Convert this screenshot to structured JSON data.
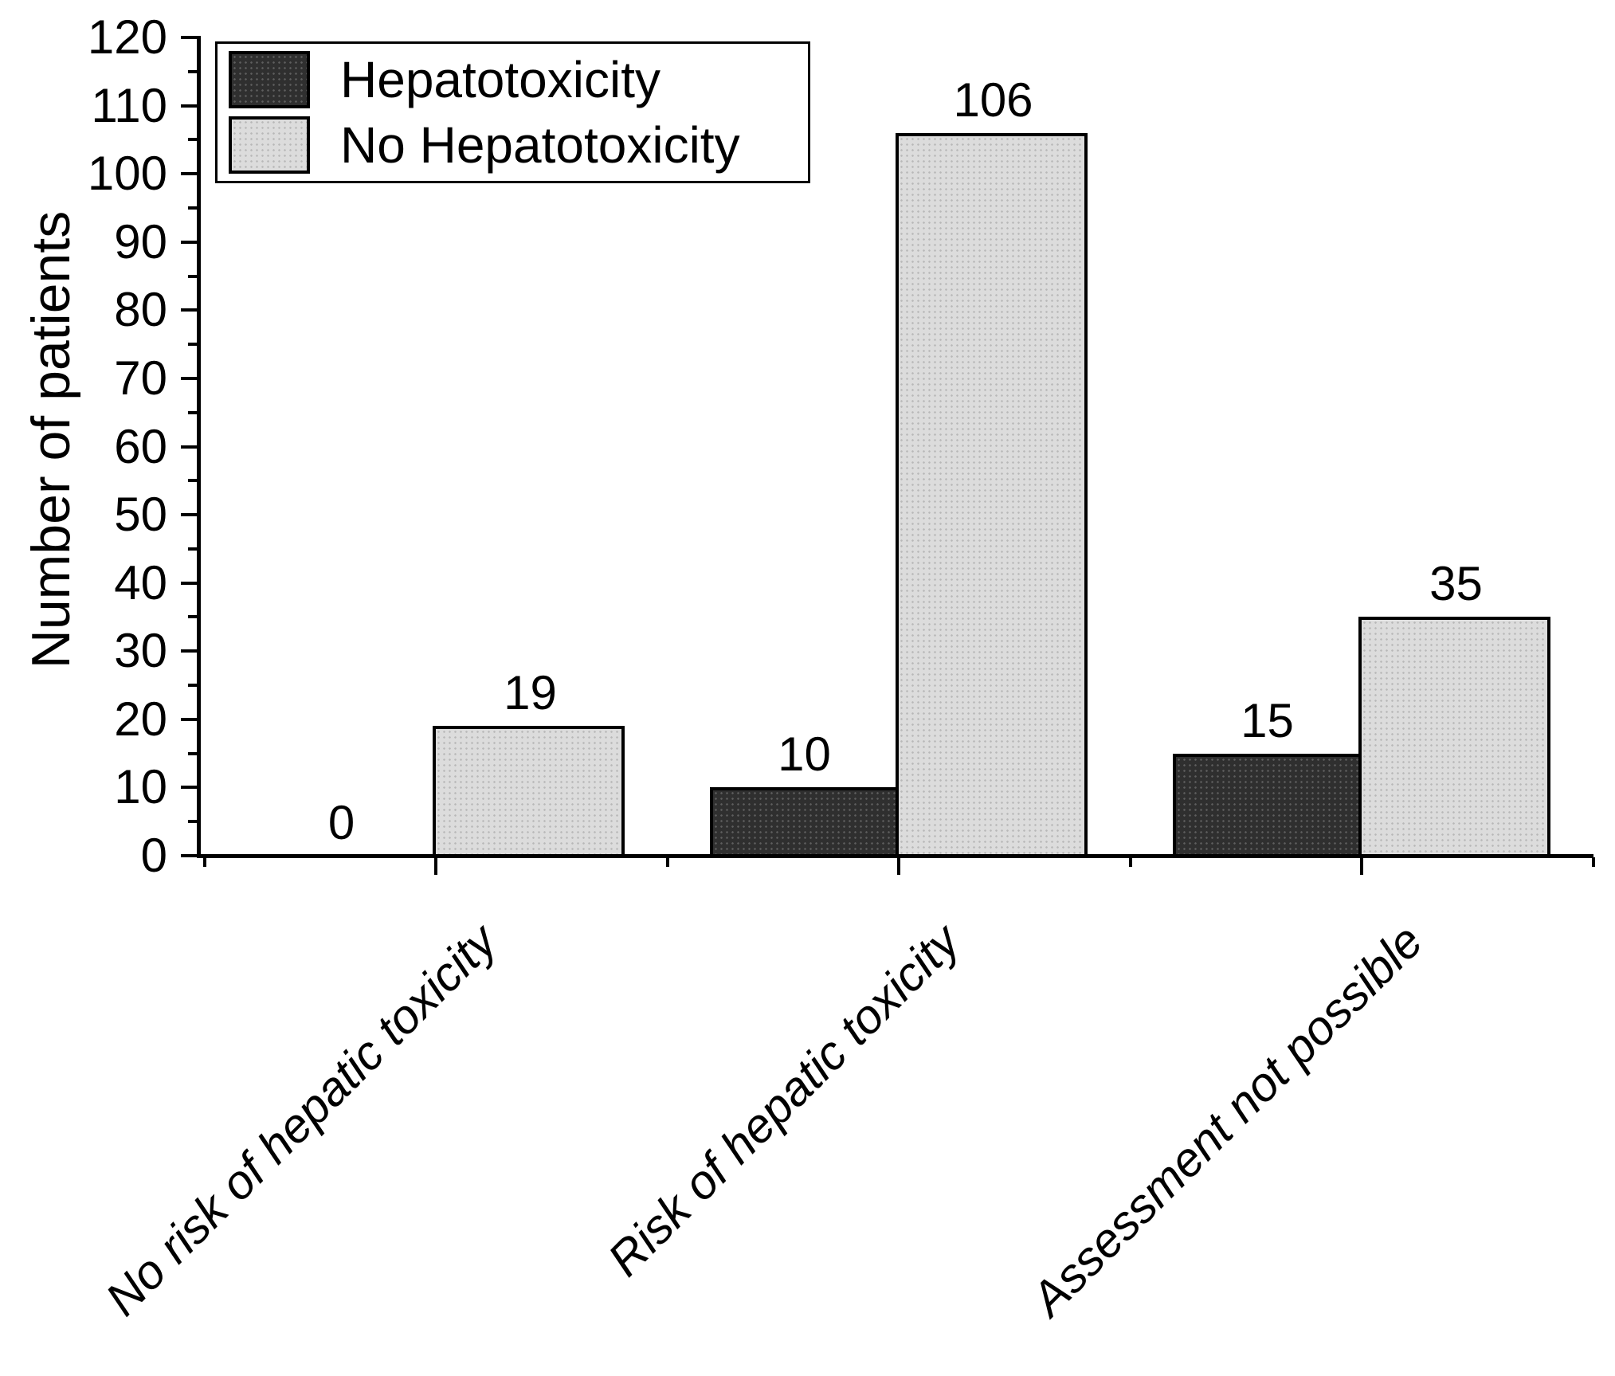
{
  "chart_data": {
    "type": "bar",
    "title": "",
    "categories": [
      "No risk of hepatic toxicity",
      "Risk of hepatic toxicity",
      "Assessment not possible"
    ],
    "series": [
      {
        "name": "Hepatotoxicity",
        "values": [
          0,
          10,
          15
        ],
        "fill": "#2f2f2f"
      },
      {
        "name": "No Hepatotoxicity",
        "values": [
          19,
          106,
          35
        ],
        "fill": "#dcdcdc"
      }
    ],
    "value_labels": [
      [
        "0",
        "10",
        "15"
      ],
      [
        "19",
        "106",
        "35"
      ]
    ],
    "xlabel": "",
    "ylabel": "Number of patients",
    "ylim": [
      0,
      120
    ],
    "y_major_tick_step": 10,
    "y_minor_tick_step": 5,
    "y_tick_labels": [
      "0",
      "10",
      "20",
      "30",
      "40",
      "50",
      "60",
      "70",
      "80",
      "90",
      "100",
      "110",
      "120"
    ],
    "grid": false,
    "bar_outline_color": "#000000",
    "legend": {
      "position": "top-left",
      "entries": [
        "Hepatotoxicity",
        "No Hepatotoxicity"
      ]
    },
    "x_tick_label_style": "italic, rotated 45deg",
    "axis_color": "#000000",
    "background_color": "#ffffff"
  }
}
